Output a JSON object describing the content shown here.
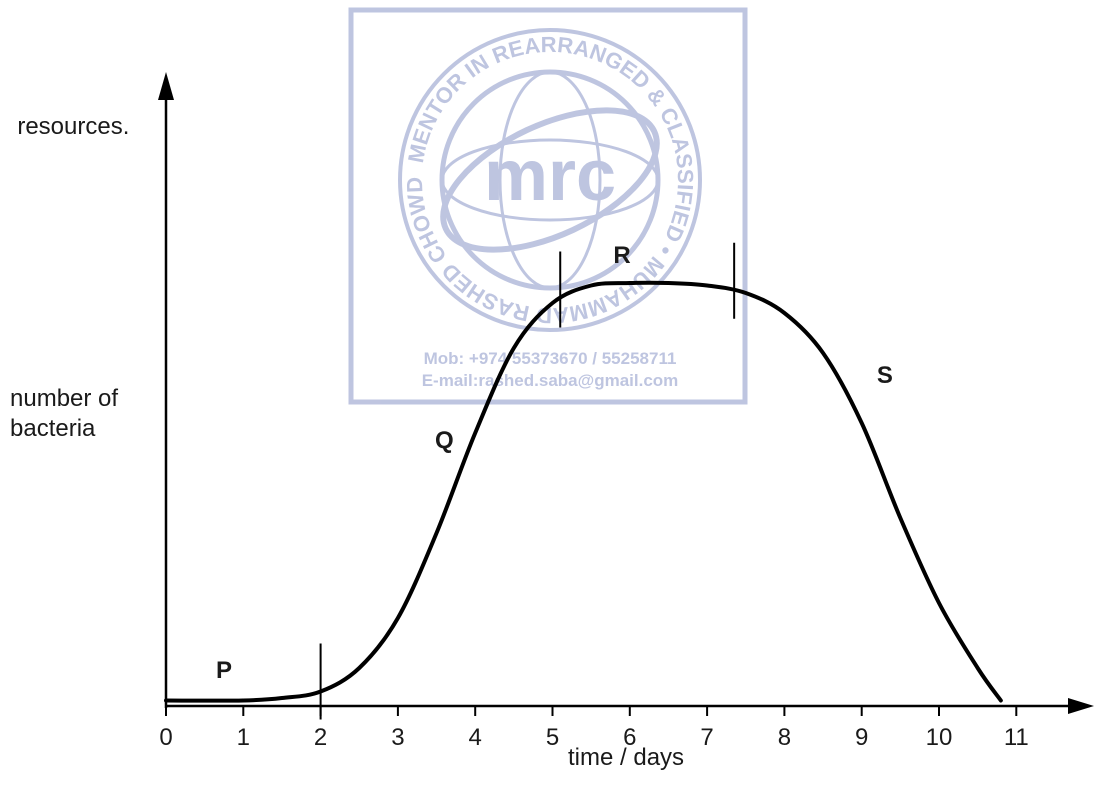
{
  "question": {
    "line_1_partial": "...",
    "line_2": "resources."
  },
  "watermark": {
    "logo_text": "mrc",
    "ring_text": "MENTOR IN REARRANGED & CLASSIFIED • MUHAMMAD RASHED CHOWDHURY •",
    "mobile": "Mob:  +974 55373670 / 55258711",
    "email": "E-mail:rashed.saba@gmail.com",
    "color": "#b8bfdd"
  },
  "chart_data": {
    "type": "line",
    "xlabel": "time / days",
    "ylabel_line1": "number of",
    "ylabel_line2": "bacteria",
    "xlim": [
      0,
      11.6
    ],
    "ylim": [
      0,
      100
    ],
    "x_ticks": [
      0,
      1,
      2,
      3,
      4,
      5,
      6,
      7,
      8,
      9,
      10,
      11
    ],
    "x_tick_labels": [
      "0",
      "1",
      "2",
      "3",
      "4",
      "5",
      "6",
      "7",
      "8",
      "9",
      "10",
      "11"
    ],
    "y_axis_numbered": false,
    "series": [
      {
        "x": [
          0,
          1,
          1.5,
          2,
          2.5,
          3,
          3.5,
          4,
          4.5,
          5,
          5.5,
          6,
          6.5,
          7,
          7.5,
          8,
          8.5,
          9,
          9.5,
          10,
          10.5,
          10.8
        ],
        "y": [
          1.5,
          1.5,
          2,
          3.3,
          8,
          18,
          35,
          55,
          72,
          81,
          84.5,
          85,
          85,
          84.5,
          83,
          79,
          71,
          57,
          38,
          21,
          8,
          1.5
        ]
      }
    ],
    "phase_boundaries_x": [
      2,
      5.1,
      7.35
    ],
    "phase_labels": [
      {
        "text": "P",
        "x": 0.75,
        "y": 6
      },
      {
        "text": "Q",
        "x": 3.6,
        "y": 52
      },
      {
        "text": "R",
        "x": 5.9,
        "y": 89
      },
      {
        "text": "S",
        "x": 9.3,
        "y": 65
      }
    ],
    "line_color": "#000000"
  }
}
